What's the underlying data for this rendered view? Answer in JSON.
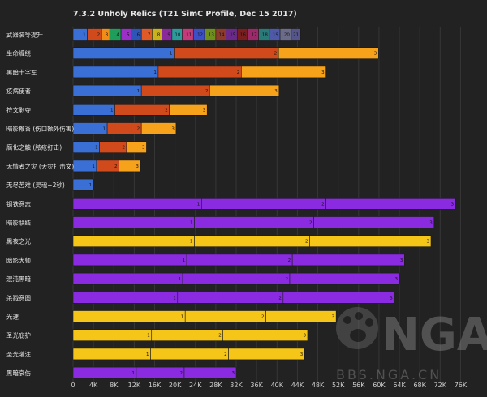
{
  "chart_data": {
    "type": "bar",
    "orientation": "horizontal",
    "stacked": true,
    "title": "7.3.2 Unholy Relics (T21 SimC Profile, Dec 15 2017)",
    "xlim": [
      0,
      78000
    ],
    "xticks": [
      {
        "value": 0,
        "label": "0"
      },
      {
        "value": 4000,
        "label": "4K"
      },
      {
        "value": 8000,
        "label": "8K"
      },
      {
        "value": 12000,
        "label": "12K"
      },
      {
        "value": 16000,
        "label": "16K"
      },
      {
        "value": 20000,
        "label": "20K"
      },
      {
        "value": 24000,
        "label": "24K"
      },
      {
        "value": 28000,
        "label": "28K"
      },
      {
        "value": 32000,
        "label": "32K"
      },
      {
        "value": 36000,
        "label": "36K"
      },
      {
        "value": 40000,
        "label": "40K"
      },
      {
        "value": 44000,
        "label": "44K"
      },
      {
        "value": 48000,
        "label": "48K"
      },
      {
        "value": 52000,
        "label": "52K"
      },
      {
        "value": 56000,
        "label": "56K"
      },
      {
        "value": 60000,
        "label": "60K"
      },
      {
        "value": 64000,
        "label": "64K"
      },
      {
        "value": 68000,
        "label": "68K"
      },
      {
        "value": 72000,
        "label": "72K"
      },
      {
        "value": 76000,
        "label": "76K"
      }
    ],
    "grid": true,
    "rows": [
      {
        "label": "武器装等提升",
        "segments": [
          {
            "end": 2800,
            "color": "#3a6fd6",
            "label": "1"
          },
          {
            "end": 5600,
            "color": "#d04a1c",
            "label": "2"
          },
          {
            "end": 7200,
            "color": "#f28c14",
            "label": "3"
          },
          {
            "end": 9400,
            "color": "#1e9e5a",
            "label": "4"
          },
          {
            "end": 11400,
            "color": "#9b2fc8",
            "label": "5"
          },
          {
            "end": 13400,
            "color": "#2d55b8",
            "label": "6"
          },
          {
            "end": 15500,
            "color": "#e05a28",
            "label": "7"
          },
          {
            "end": 17400,
            "color": "#c9b21c",
            "label": "8"
          },
          {
            "end": 19400,
            "color": "#8a2a9a",
            "label": "9"
          },
          {
            "end": 21400,
            "color": "#2b9c9a",
            "label": "10"
          },
          {
            "end": 23600,
            "color": "#c43a7a",
            "label": "11"
          },
          {
            "end": 25800,
            "color": "#3c4fc6",
            "label": "12"
          },
          {
            "end": 28000,
            "color": "#6f8f1c",
            "label": "13"
          },
          {
            "end": 30000,
            "color": "#8c3a2a",
            "label": "14"
          },
          {
            "end": 32200,
            "color": "#6b2a8a",
            "label": "15"
          },
          {
            "end": 34200,
            "color": "#7a1e1e",
            "label": "16"
          },
          {
            "end": 36400,
            "color": "#9c2a6a",
            "label": "17"
          },
          {
            "end": 38500,
            "color": "#2a7a7a",
            "label": "18"
          },
          {
            "end": 40600,
            "color": "#4e5aa8",
            "label": "19"
          },
          {
            "end": 42800,
            "color": "#6b6b8a",
            "label": "20"
          },
          {
            "end": 44600,
            "color": "#55558a",
            "label": "21"
          }
        ]
      },
      {
        "label": "坐命缠绕",
        "segments": [
          {
            "end": 19800,
            "color": "#3a6fd6",
            "label": "1"
          },
          {
            "end": 40300,
            "color": "#d04a1c",
            "label": "2"
          },
          {
            "end": 59900,
            "color": "#f7a21b",
            "label": "3"
          }
        ]
      },
      {
        "label": "黑暗十字军",
        "segments": [
          {
            "end": 16700,
            "color": "#3a6fd6",
            "label": "1"
          },
          {
            "end": 33000,
            "color": "#d04a1c",
            "label": "2"
          },
          {
            "end": 49600,
            "color": "#f7a21b",
            "label": "3"
          }
        ]
      },
      {
        "label": "疫病使者",
        "segments": [
          {
            "end": 13400,
            "color": "#3a6fd6",
            "label": "1"
          },
          {
            "end": 26800,
            "color": "#d04a1c",
            "label": "2"
          },
          {
            "end": 40400,
            "color": "#f7a21b",
            "label": "3"
          }
        ]
      },
      {
        "label": "符文剥夺",
        "segments": [
          {
            "end": 8200,
            "color": "#3a6fd6",
            "label": "1"
          },
          {
            "end": 18900,
            "color": "#d04a1c",
            "label": "2"
          },
          {
            "end": 26300,
            "color": "#f7a21b",
            "label": "3"
          }
        ]
      },
      {
        "label": "暗影鞭笞 (伤口额外伤害)",
        "segments": [
          {
            "end": 6700,
            "color": "#3a6fd6",
            "label": "1"
          },
          {
            "end": 13400,
            "color": "#d04a1c",
            "label": "2"
          },
          {
            "end": 20200,
            "color": "#f7a21b",
            "label": "3"
          }
        ]
      },
      {
        "label": "腐化之触 (脓疮打击)",
        "segments": [
          {
            "end": 5200,
            "color": "#3a6fd6",
            "label": "1"
          },
          {
            "end": 10500,
            "color": "#d04a1c",
            "label": "2"
          },
          {
            "end": 14400,
            "color": "#f7a21b",
            "label": "3"
          }
        ]
      },
      {
        "label": "无情者之灾 (天灾打击文)",
        "segments": [
          {
            "end": 4600,
            "color": "#3a6fd6",
            "label": "1"
          },
          {
            "end": 9000,
            "color": "#d04a1c",
            "label": "2"
          },
          {
            "end": 13200,
            "color": "#f7a21b",
            "label": "3"
          }
        ]
      },
      {
        "label": "无尽苦难 (灵魂+2秒)",
        "segments": [
          {
            "end": 4000,
            "color": "#3a6fd6",
            "label": "1"
          }
        ]
      },
      {
        "label": "钢铁意志",
        "segments": [
          {
            "end": 25200,
            "color": "#8a2be2",
            "label": "1"
          },
          {
            "end": 49600,
            "color": "#8a2be2",
            "label": "2"
          },
          {
            "end": 75000,
            "color": "#8a2be2",
            "label": "3"
          }
        ]
      },
      {
        "label": "暗影联结",
        "segments": [
          {
            "end": 23800,
            "color": "#8a2be2",
            "label": "1"
          },
          {
            "end": 47200,
            "color": "#8a2be2",
            "label": "2"
          },
          {
            "end": 70800,
            "color": "#8a2be2",
            "label": "3"
          }
        ]
      },
      {
        "label": "黑夜之光",
        "segments": [
          {
            "end": 23800,
            "color": "#f5c518",
            "label": "1"
          },
          {
            "end": 46400,
            "color": "#f5c518",
            "label": "2"
          },
          {
            "end": 70200,
            "color": "#f5c518",
            "label": "3"
          }
        ]
      },
      {
        "label": "暗影大师",
        "segments": [
          {
            "end": 22300,
            "color": "#8a2be2",
            "label": "1"
          },
          {
            "end": 43000,
            "color": "#8a2be2",
            "label": "2"
          },
          {
            "end": 65000,
            "color": "#8a2be2",
            "label": "3"
          }
        ]
      },
      {
        "label": "混沌黑暗",
        "segments": [
          {
            "end": 21500,
            "color": "#8a2be2",
            "label": "1"
          },
          {
            "end": 42500,
            "color": "#8a2be2",
            "label": "2"
          },
          {
            "end": 64000,
            "color": "#8a2be2",
            "label": "3"
          }
        ]
      },
      {
        "label": "杀戮意图",
        "segments": [
          {
            "end": 20500,
            "color": "#8a2be2",
            "label": "1"
          },
          {
            "end": 41200,
            "color": "#8a2be2",
            "label": "2"
          },
          {
            "end": 63000,
            "color": "#8a2be2",
            "label": "3"
          }
        ]
      },
      {
        "label": "光速",
        "segments": [
          {
            "end": 22000,
            "color": "#f5c518",
            "label": "1"
          },
          {
            "end": 37800,
            "color": "#f5c518",
            "label": "2"
          },
          {
            "end": 51600,
            "color": "#f5c518",
            "label": "3"
          }
        ]
      },
      {
        "label": "圣光庇护",
        "segments": [
          {
            "end": 15400,
            "color": "#f5c518",
            "label": "1"
          },
          {
            "end": 29400,
            "color": "#f5c518",
            "label": "2"
          },
          {
            "end": 46000,
            "color": "#f5c518",
            "label": "3"
          }
        ]
      },
      {
        "label": "圣光灌注",
        "segments": [
          {
            "end": 15200,
            "color": "#f5c518",
            "label": "1"
          },
          {
            "end": 30500,
            "color": "#f5c518",
            "label": "2"
          },
          {
            "end": 45400,
            "color": "#f5c518",
            "label": "3"
          }
        ]
      },
      {
        "label": "黑暗哀伤",
        "segments": [
          {
            "end": 12400,
            "color": "#8a2be2",
            "label": "1"
          },
          {
            "end": 21800,
            "color": "#8a2be2",
            "label": "2"
          },
          {
            "end": 32000,
            "color": "#8a2be2",
            "label": "3"
          }
        ]
      }
    ]
  },
  "watermark": {
    "logo_text": "NGA",
    "site_text": "BBS.NGA.CN",
    "color": "#9a9a9a"
  }
}
